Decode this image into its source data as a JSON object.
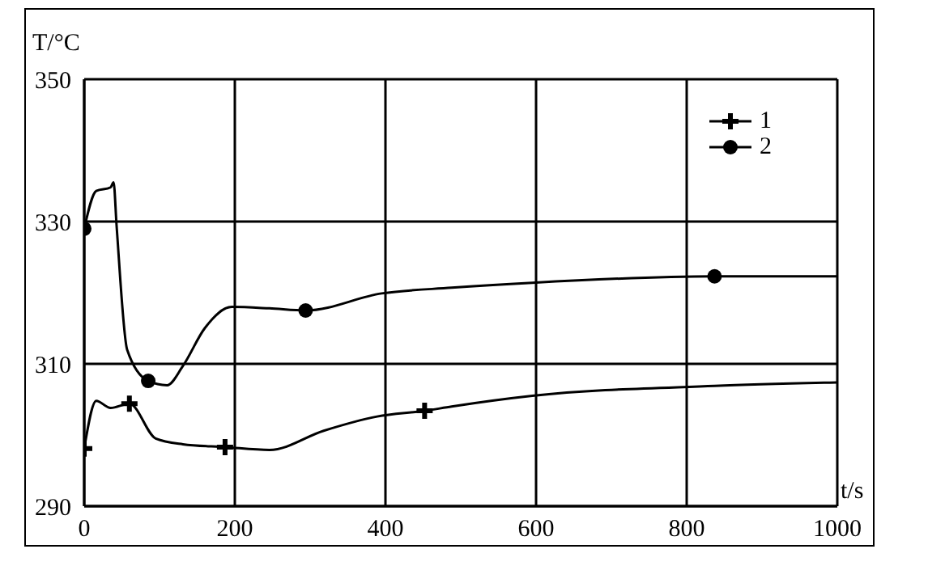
{
  "chart_data": {
    "type": "line",
    "xlabel": "t/s",
    "ylabel": "T/°C",
    "xlim": [
      0,
      1000
    ],
    "ylim": [
      290,
      350
    ],
    "xticks": [
      0,
      200,
      400,
      600,
      800,
      1000
    ],
    "yticks": [
      290,
      310,
      330,
      350
    ],
    "grid": true,
    "legend": "top right",
    "line_style": "solid",
    "series": [
      {
        "color": "#000000",
        "marker": "none",
        "x": [
          0,
          16,
          35,
          60,
          95,
          131,
          187,
          246,
          318,
          389,
          452,
          488,
          595,
          837,
          1000
        ],
        "values": [
          298.1,
          304.8,
          303.8,
          304.4,
          299.5,
          298.7,
          298.3,
          297.9,
          300.6,
          302.6,
          303.4,
          304,
          305.5,
          306.9,
          307.4
        ]
      },
      {
        "type": "scatter",
        "name": "1",
        "color": "#000000",
        "marker": "cross",
        "x": [
          0,
          60,
          187,
          452
        ],
        "values": [
          298.1,
          304.4,
          298.3,
          303.4
        ]
      },
      {
        "color": "#000000",
        "marker": "none",
        "x": [
          0,
          16,
          35,
          39,
          43,
          57,
          85,
          110,
          131,
          160,
          196,
          246,
          294,
          395,
          488,
          595,
          837,
          1000
        ],
        "values": [
          329,
          334.3,
          334.8,
          335.5,
          329.4,
          312,
          307.6,
          307,
          309.7,
          315,
          318,
          317.8,
          317.5,
          319.9,
          320.7,
          321.4,
          322.3,
          322.3
        ]
      },
      {
        "type": "scatter",
        "name": "2",
        "color": "#000000",
        "marker": "circle",
        "x": [
          0,
          85,
          294,
          837
        ],
        "values": [
          329,
          307.6,
          317.5,
          322.3
        ]
      }
    ]
  }
}
